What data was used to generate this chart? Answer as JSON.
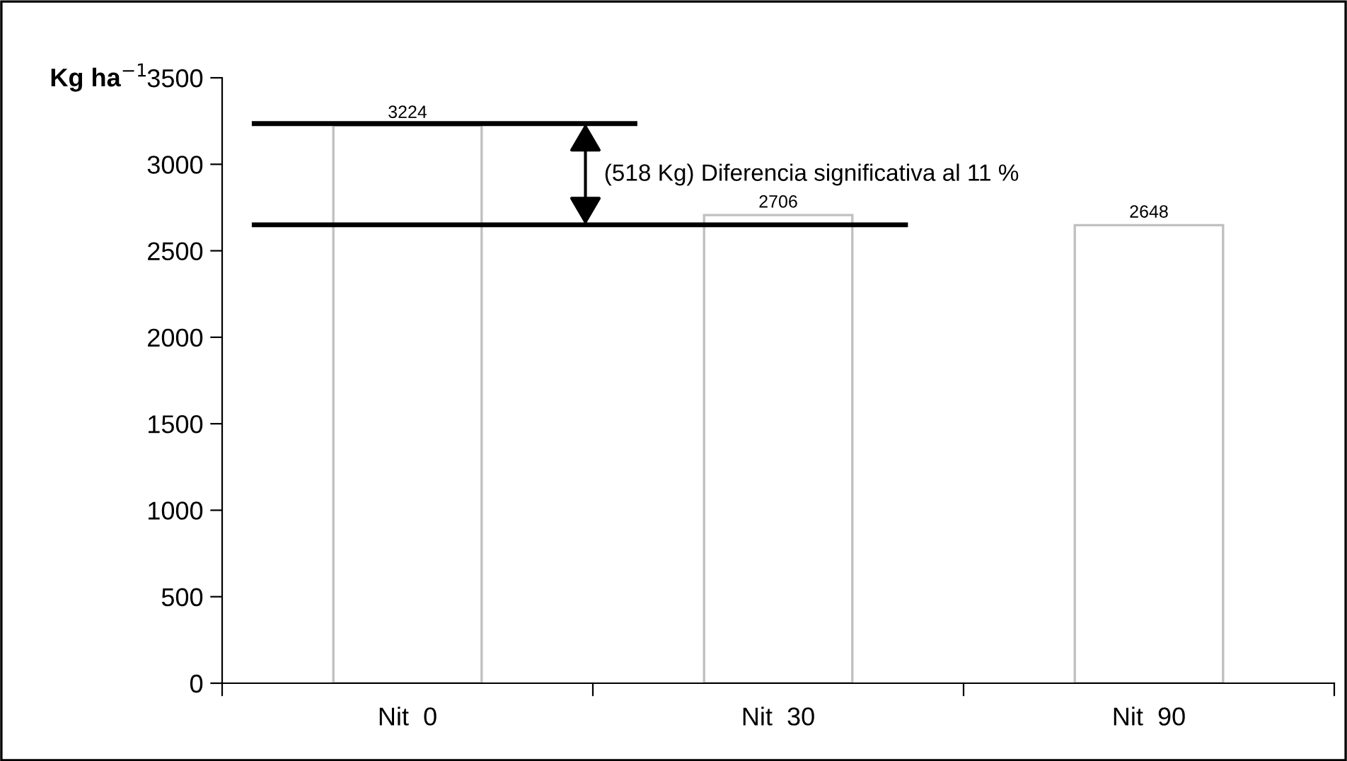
{
  "chart_data": {
    "type": "bar",
    "ylabel": "Kg ha$^{−1}$",
    "categories": [
      "Nit  0",
      "Nit  30",
      "Nit  90"
    ],
    "series": [
      {
        "color": "#c0c0c0",
        "values": [
          3224,
          2706,
          2648
        ]
      }
    ],
    "ylim": [
      0,
      3500
    ],
    "yticks": [
      0,
      500,
      1000,
      1500,
      2000,
      2500,
      3000,
      3500
    ],
    "grid": false,
    "data_labels": true,
    "ref_lines": [
      {
        "axis": "y",
        "value": 3235,
        "color": "#000000",
        "line_style": "solid"
      },
      {
        "axis": "y",
        "value": 2650,
        "color": "#000000",
        "line_style": "solid"
      }
    ],
    "annotations": [
      "(518 Kg) Diferencia significativa al 11 %"
    ]
  }
}
